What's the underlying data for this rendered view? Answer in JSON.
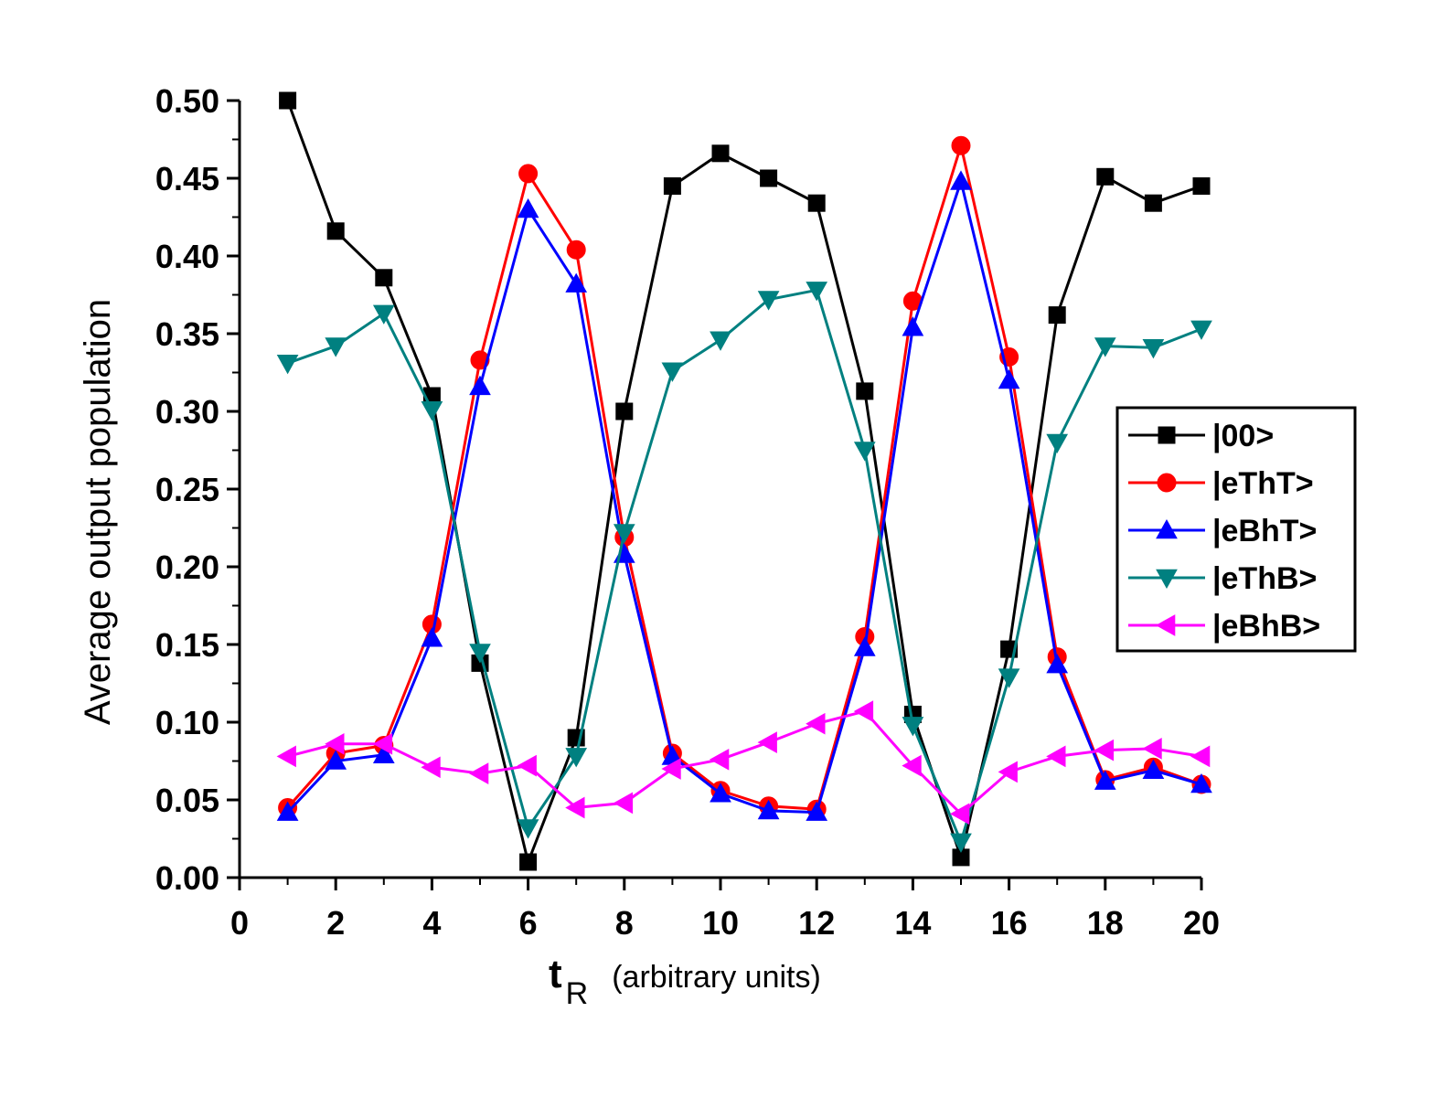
{
  "chart_data": {
    "type": "line",
    "xlabel": {
      "main": "t",
      "sub": "R",
      "note": "(arbitrary units)"
    },
    "ylabel": "Average output population",
    "xlim": [
      0,
      20
    ],
    "ylim": [
      0,
      0.5
    ],
    "x_ticks": [
      "0",
      "2",
      "4",
      "6",
      "8",
      "10",
      "12",
      "14",
      "16",
      "18",
      "20"
    ],
    "y_ticks": [
      "0.00",
      "0.05",
      "0.10",
      "0.15",
      "0.20",
      "0.25",
      "0.30",
      "0.35",
      "0.40",
      "0.45",
      "0.50"
    ],
    "x": [
      1,
      2,
      3,
      4,
      5,
      6,
      7,
      8,
      9,
      10,
      11,
      12,
      13,
      14,
      15,
      16,
      17,
      18,
      19,
      20
    ],
    "legend_position": "right",
    "series": [
      {
        "name": "|00>",
        "color": "#000000",
        "marker": "square",
        "values": [
          0.5,
          0.416,
          0.386,
          0.31,
          0.138,
          0.01,
          0.09,
          0.3,
          0.445,
          0.466,
          0.45,
          0.434,
          0.313,
          0.105,
          0.013,
          0.147,
          0.362,
          0.451,
          0.434,
          0.445
        ]
      },
      {
        "name": "|eThT>",
        "color": "#ff0000",
        "marker": "circle",
        "values": [
          0.045,
          0.08,
          0.085,
          0.163,
          0.333,
          0.453,
          0.404,
          0.219,
          0.08,
          0.056,
          0.046,
          0.044,
          0.155,
          0.371,
          0.471,
          0.335,
          0.142,
          0.063,
          0.071,
          0.06
        ]
      },
      {
        "name": "|eBhT>",
        "color": "#0000ff",
        "marker": "triangle-up",
        "values": [
          0.042,
          0.075,
          0.079,
          0.154,
          0.316,
          0.43,
          0.382,
          0.208,
          0.078,
          0.054,
          0.043,
          0.042,
          0.148,
          0.354,
          0.448,
          0.32,
          0.137,
          0.062,
          0.069,
          0.06
        ]
      },
      {
        "name": "|eThB>",
        "color": "#008080",
        "marker": "triangle-down",
        "values": [
          0.331,
          0.342,
          0.363,
          0.301,
          0.145,
          0.032,
          0.078,
          0.222,
          0.326,
          0.346,
          0.372,
          0.378,
          0.275,
          0.098,
          0.023,
          0.129,
          0.28,
          0.342,
          0.341,
          0.353
        ]
      },
      {
        "name": "|eBhB>",
        "color": "#ff00ff",
        "marker": "triangle-left",
        "values": [
          0.078,
          0.086,
          0.086,
          0.071,
          0.067,
          0.072,
          0.045,
          0.048,
          0.07,
          0.076,
          0.087,
          0.099,
          0.107,
          0.072,
          0.041,
          0.068,
          0.078,
          0.082,
          0.083,
          0.078
        ]
      }
    ]
  }
}
